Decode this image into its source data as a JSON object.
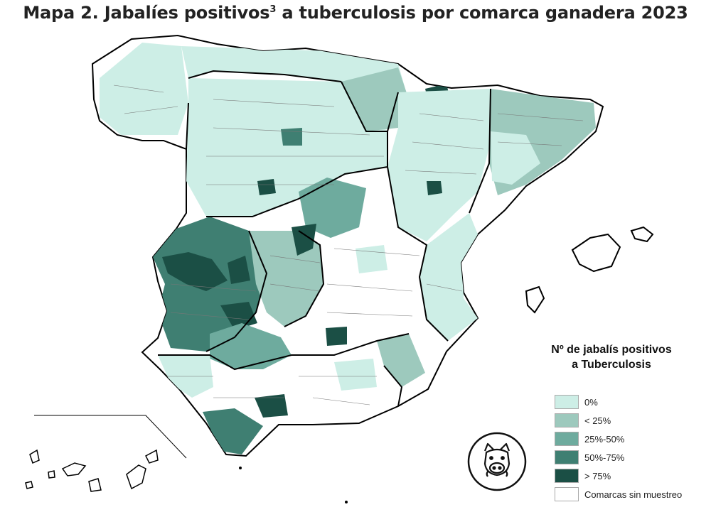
{
  "title": {
    "main": "Mapa 2. Jabalíes positivos",
    "superscript": "3",
    "rest": " a tuberculosis por comarca ganadera 2023"
  },
  "legend": {
    "title_line1": "Nº de jabalís positivos",
    "title_line2": "a Tuberculosis",
    "items": [
      {
        "label": "0%",
        "color": "#cdeee6"
      },
      {
        "label": "< 25%",
        "color": "#9dc9bd"
      },
      {
        "label": "25%-50%",
        "color": "#6eab9e"
      },
      {
        "label": "50%-75%",
        "color": "#3f7f72"
      },
      {
        "label": "> 75%",
        "color": "#1b4f45"
      },
      {
        "label": "Comarcas sin muestreo",
        "color": "#ffffff"
      }
    ]
  },
  "icons": {
    "logo": "boar-icon"
  }
}
